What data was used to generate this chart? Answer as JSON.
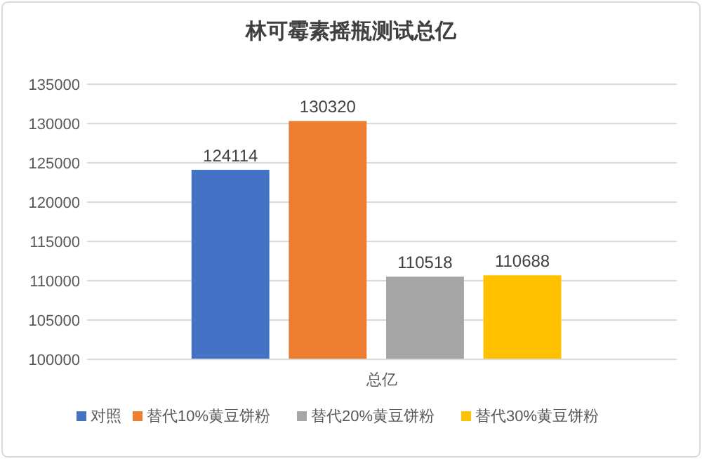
{
  "chart_data": {
    "type": "bar",
    "title": "林可霉素摇瓶测试总亿",
    "categories": [
      "总亿"
    ],
    "series": [
      {
        "name": "对照",
        "color": "#4472c4",
        "values": [
          124114
        ]
      },
      {
        "name": "替代10%黄豆饼粉",
        "color": "#ed7d31",
        "values": [
          130320
        ]
      },
      {
        "name": "替代20%黄豆饼粉",
        "color": "#a5a5a5",
        "values": [
          110518
        ]
      },
      {
        "name": "替代30%黄豆饼粉",
        "color": "#ffc000",
        "values": [
          110688
        ]
      }
    ],
    "ylim": [
      100000,
      135000
    ],
    "yticks": [
      100000,
      105000,
      110000,
      115000,
      120000,
      125000,
      130000,
      135000
    ],
    "grid": "y",
    "legend": "bottom",
    "data_labels": true
  }
}
